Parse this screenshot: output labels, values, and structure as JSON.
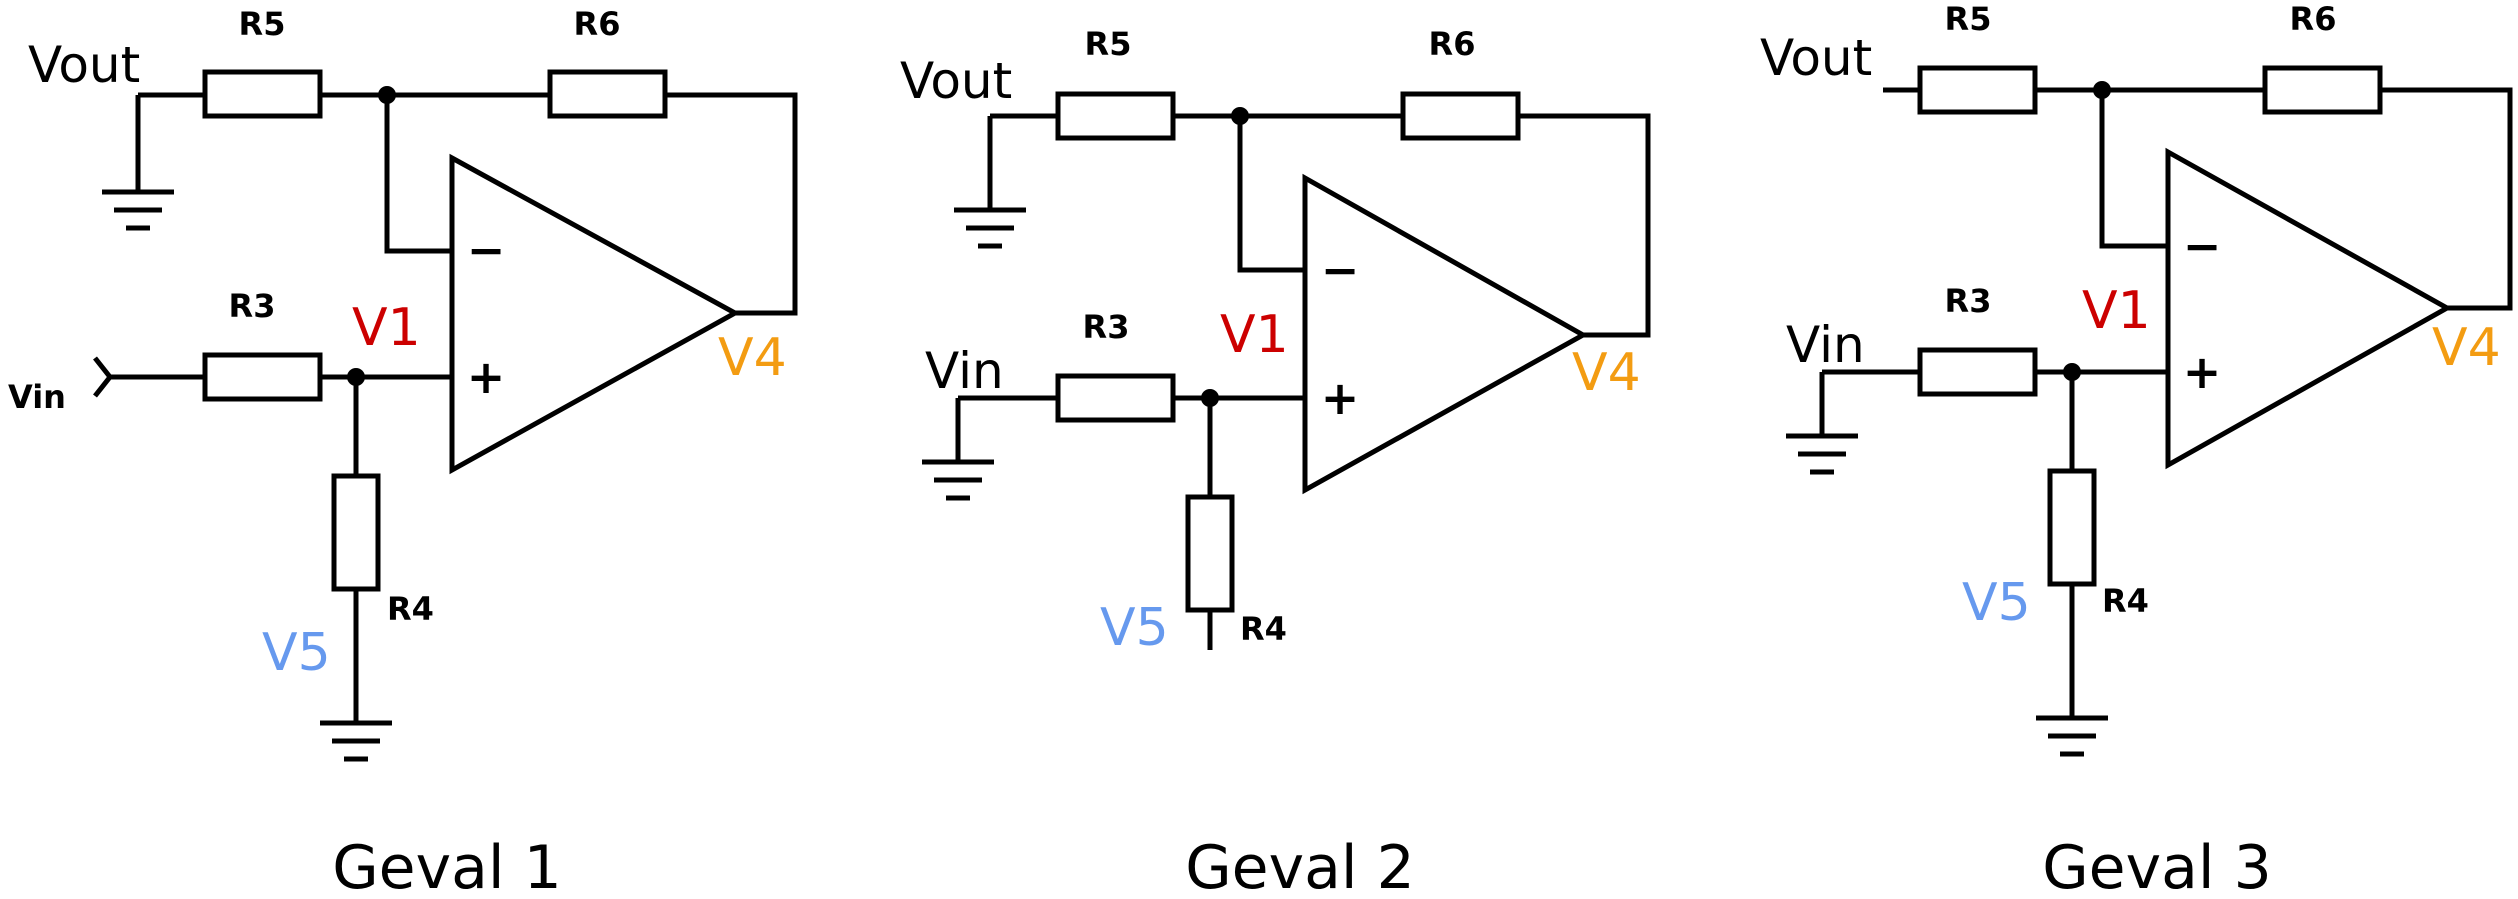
{
  "colors": {
    "v1": "#cc0000",
    "v4": "#f39c12",
    "v5": "#6699ee",
    "wire": "#000000"
  },
  "circuits": [
    {
      "title": "Geval 1",
      "labels": {
        "r5": "R5",
        "r6": "R6",
        "r3": "R3",
        "r4": "R4",
        "vout": "Vout",
        "vin": "Vin",
        "v1": "V1",
        "v4": "V4",
        "v5": "V5",
        "minus": "−",
        "plus": "+"
      }
    },
    {
      "title": "Geval 2",
      "labels": {
        "r5": "R5",
        "r6": "R6",
        "r3": "R3",
        "r4": "R4",
        "vout": "Vout",
        "vin": "Vin",
        "v1": "V1",
        "v4": "V4",
        "v5": "V5",
        "minus": "−",
        "plus": "+"
      }
    },
    {
      "title": "Geval 3",
      "labels": {
        "r5": "R5",
        "r6": "R6",
        "r3": "R3",
        "r4": "R4",
        "vout": "Vout",
        "vin": "Vin",
        "v1": "V1",
        "v4": "V4",
        "v5": "V5",
        "minus": "−",
        "plus": "+"
      }
    }
  ]
}
